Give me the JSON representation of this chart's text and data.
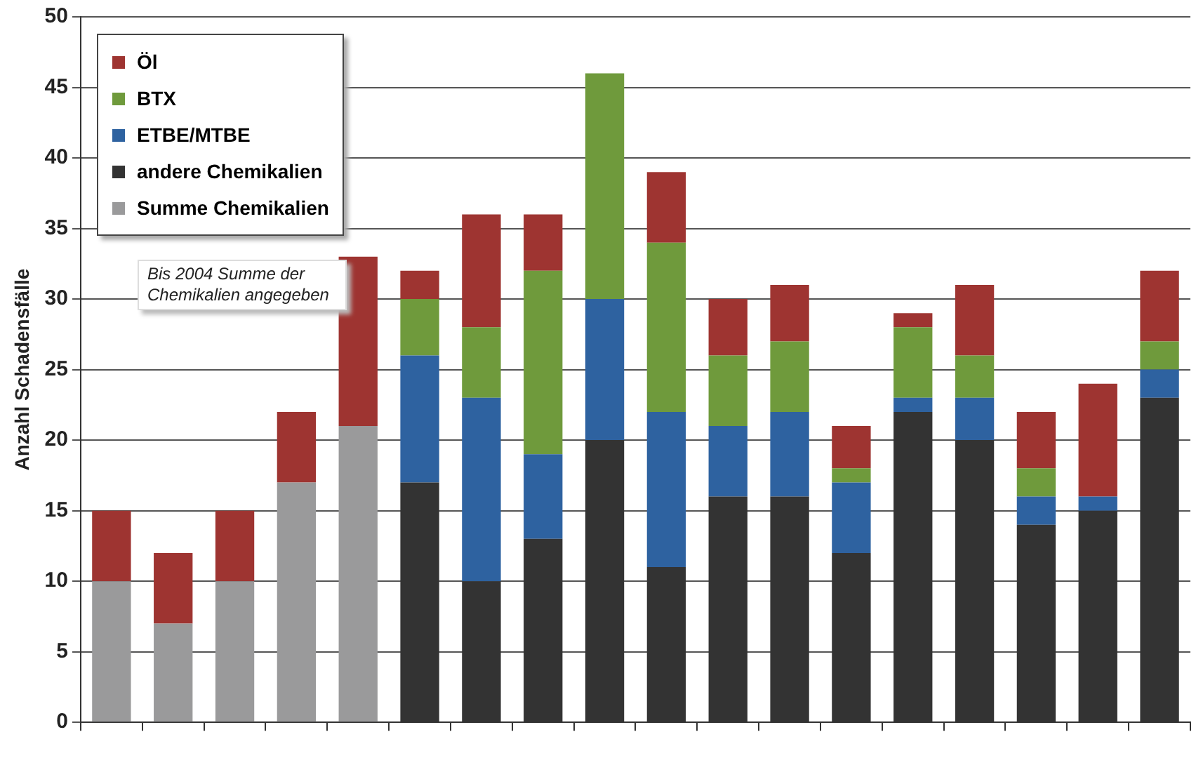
{
  "chart_data": {
    "type": "bar",
    "stacked": true,
    "ylabel": "Anzahl Schadensfälle",
    "categories": [
      null,
      null,
      null,
      null,
      null,
      null,
      null,
      null,
      null,
      null,
      null,
      null,
      null,
      null,
      null,
      null,
      null,
      null
    ],
    "series": [
      {
        "name": "Summe Chemikalien",
        "color": "#9a9a9b",
        "values": [
          10,
          7,
          10,
          17,
          21,
          0,
          0,
          0,
          0,
          0,
          0,
          0,
          0,
          0,
          0,
          0,
          0,
          0
        ]
      },
      {
        "name": "andere Chemikalien",
        "color": "#333333",
        "values": [
          0,
          0,
          0,
          0,
          0,
          17,
          10,
          13,
          20,
          11,
          16,
          16,
          12,
          22,
          20,
          14,
          15,
          23
        ]
      },
      {
        "name": "ETBE/MTBE",
        "color": "#2e62a0",
        "values": [
          0,
          0,
          0,
          0,
          0,
          9,
          13,
          6,
          10,
          11,
          5,
          6,
          5,
          1,
          3,
          2,
          1,
          2
        ]
      },
      {
        "name": "BTX",
        "color": "#6f9a3c",
        "values": [
          0,
          0,
          0,
          0,
          0,
          4,
          5,
          13,
          16,
          12,
          5,
          5,
          1,
          5,
          3,
          2,
          0,
          2
        ]
      },
      {
        "name": "Öl",
        "color": "#9e3431",
        "values": [
          5,
          5,
          5,
          5,
          12,
          2,
          8,
          4,
          0,
          5,
          4,
          4,
          3,
          1,
          5,
          4,
          8,
          5
        ]
      }
    ],
    "ylim": [
      0,
      50
    ],
    "yticks": [
      0,
      5,
      10,
      15,
      20,
      25,
      30,
      35,
      40,
      45,
      50
    ],
    "grid": "y",
    "legend": "top left",
    "annotations": [
      "Bis 2004  Summe der Chemikalien angegeben"
    ]
  }
}
